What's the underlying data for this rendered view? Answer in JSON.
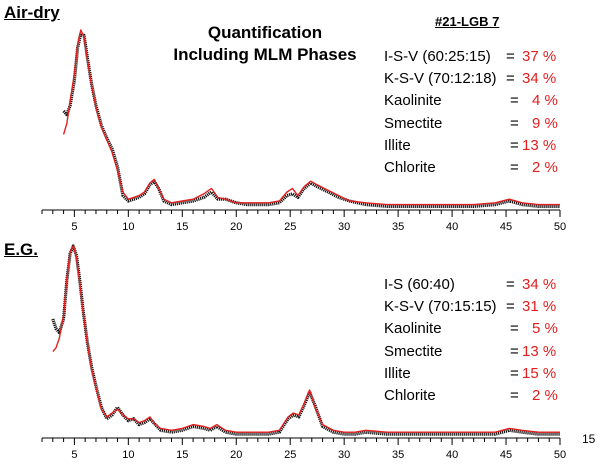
{
  "title": "Quantification Including MLM Phases",
  "title_lines": [
    "Quantification",
    "Including MLM Phases"
  ],
  "sample_id": "#21-LGB 7",
  "extra_label": "15",
  "colors": {
    "measured": "#111111",
    "calculated": "#e02020",
    "value": "#e02020"
  },
  "chart_data": [
    {
      "type": "line",
      "panel_label": "Air-dry",
      "xlim": [
        2,
        50
      ],
      "x_ticks": [
        5,
        10,
        15,
        20,
        25,
        30,
        35,
        40,
        45,
        50
      ],
      "grid": false,
      "series": [
        {
          "style": "measured-dotted",
          "x": [
            4,
            4.3,
            4.6,
            5,
            5.3,
            5.6,
            5.9,
            6.2,
            6.6,
            7,
            7.5,
            8,
            8.5,
            9,
            9.5,
            10,
            10.5,
            11,
            11.5,
            12,
            12.4,
            12.8,
            13.3,
            14,
            15,
            16,
            17,
            17.7,
            18.3,
            19,
            20,
            21,
            22,
            23,
            24,
            24.7,
            25.2,
            25.7,
            26.3,
            26.9,
            27.5,
            28.5,
            29.5,
            30.5,
            32,
            34,
            36,
            38,
            40,
            42,
            44,
            45.3,
            46.5,
            48,
            50
          ],
          "y": [
            0.55,
            0.53,
            0.58,
            0.72,
            0.9,
            0.98,
            0.97,
            0.85,
            0.7,
            0.58,
            0.47,
            0.4,
            0.34,
            0.24,
            0.08,
            0.05,
            0.06,
            0.07,
            0.09,
            0.14,
            0.16,
            0.12,
            0.05,
            0.03,
            0.04,
            0.05,
            0.07,
            0.1,
            0.06,
            0.06,
            0.04,
            0.03,
            0.03,
            0.03,
            0.04,
            0.08,
            0.09,
            0.07,
            0.12,
            0.15,
            0.13,
            0.1,
            0.07,
            0.05,
            0.03,
            0.02,
            0.02,
            0.02,
            0.02,
            0.02,
            0.03,
            0.05,
            0.03,
            0.02,
            0.02
          ]
        },
        {
          "style": "calculated",
          "x": [
            4,
            4.3,
            4.6,
            5,
            5.3,
            5.6,
            5.9,
            6.2,
            6.6,
            7,
            7.5,
            8,
            8.5,
            9,
            9.5,
            10,
            10.5,
            11,
            11.5,
            12,
            12.4,
            12.8,
            13.3,
            14,
            15,
            16,
            17,
            17.7,
            18.3,
            19,
            20,
            21,
            22,
            23,
            24,
            24.7,
            25.2,
            25.7,
            26.3,
            26.9,
            27.5,
            28.5,
            29.5,
            30.5,
            32,
            34,
            36,
            38,
            40,
            42,
            44,
            45.3,
            46.5,
            48,
            50
          ],
          "y": [
            0.42,
            0.48,
            0.6,
            0.76,
            0.92,
            1.0,
            0.96,
            0.84,
            0.69,
            0.57,
            0.46,
            0.39,
            0.32,
            0.22,
            0.1,
            0.06,
            0.07,
            0.08,
            0.1,
            0.15,
            0.17,
            0.12,
            0.06,
            0.04,
            0.05,
            0.06,
            0.09,
            0.12,
            0.07,
            0.06,
            0.04,
            0.04,
            0.04,
            0.04,
            0.05,
            0.1,
            0.12,
            0.08,
            0.13,
            0.16,
            0.14,
            0.11,
            0.08,
            0.05,
            0.04,
            0.03,
            0.03,
            0.03,
            0.03,
            0.03,
            0.04,
            0.06,
            0.04,
            0.03,
            0.03
          ]
        }
      ],
      "phases": [
        {
          "name": "I-S-V",
          "ratio": "(60:25:15)",
          "value": "37 %"
        },
        {
          "name": "K-S-V",
          "ratio": "(70:12:18)",
          "value": "34 %"
        },
        {
          "name": "Kaolinite",
          "ratio": "",
          "value": "4 %"
        },
        {
          "name": "Smectite",
          "ratio": "",
          "value": "9 %"
        },
        {
          "name": "Illite",
          "ratio": "",
          "value": "13 %"
        },
        {
          "name": "Chlorite",
          "ratio": "",
          "value": "2 %"
        }
      ]
    },
    {
      "type": "line",
      "panel_label": "E.G.",
      "xlim": [
        2,
        50
      ],
      "x_ticks": [
        5,
        10,
        15,
        20,
        25,
        30,
        35,
        40,
        45,
        50
      ],
      "grid": false,
      "series": [
        {
          "style": "measured-dotted",
          "x": [
            3,
            3.3,
            3.6,
            4,
            4.3,
            4.6,
            4.9,
            5.2,
            5.5,
            5.8,
            6.2,
            6.6,
            7,
            7.5,
            8,
            8.5,
            9,
            9.5,
            10,
            10.5,
            11,
            11.5,
            12,
            12.5,
            13,
            14,
            15,
            16,
            17,
            17.6,
            18.2,
            19,
            20,
            21,
            22,
            23,
            24,
            24.8,
            25.3,
            25.8,
            26.3,
            26.8,
            27.3,
            28,
            29,
            30,
            31,
            32,
            34,
            36,
            38,
            40,
            42,
            44,
            45.3,
            46.5,
            48,
            50
          ],
          "y": [
            0.62,
            0.57,
            0.55,
            0.62,
            0.82,
            0.96,
            1.0,
            0.95,
            0.82,
            0.67,
            0.5,
            0.37,
            0.27,
            0.16,
            0.1,
            0.12,
            0.16,
            0.12,
            0.09,
            0.1,
            0.07,
            0.08,
            0.1,
            0.07,
            0.04,
            0.03,
            0.04,
            0.06,
            0.05,
            0.04,
            0.06,
            0.03,
            0.02,
            0.02,
            0.02,
            0.02,
            0.03,
            0.1,
            0.12,
            0.11,
            0.17,
            0.24,
            0.17,
            0.06,
            0.03,
            0.02,
            0.02,
            0.03,
            0.02,
            0.02,
            0.02,
            0.02,
            0.02,
            0.02,
            0.04,
            0.03,
            0.02,
            0.02
          ]
        },
        {
          "style": "calculated",
          "x": [
            3,
            3.3,
            3.6,
            4,
            4.3,
            4.6,
            4.9,
            5.2,
            5.5,
            5.8,
            6.2,
            6.6,
            7,
            7.5,
            8,
            8.5,
            9,
            9.5,
            10,
            10.5,
            11,
            11.5,
            12,
            12.5,
            13,
            14,
            15,
            16,
            17,
            17.6,
            18.2,
            19,
            20,
            21,
            22,
            23,
            24,
            24.8,
            25.3,
            25.8,
            26.3,
            26.8,
            27.3,
            28,
            29,
            30,
            31,
            32,
            34,
            36,
            38,
            40,
            42,
            44,
            45.3,
            46.5,
            48,
            50
          ],
          "y": [
            0.45,
            0.47,
            0.52,
            0.64,
            0.83,
            0.97,
            1.0,
            0.94,
            0.81,
            0.66,
            0.49,
            0.36,
            0.26,
            0.15,
            0.11,
            0.13,
            0.15,
            0.12,
            0.1,
            0.1,
            0.08,
            0.09,
            0.11,
            0.07,
            0.05,
            0.04,
            0.05,
            0.07,
            0.06,
            0.05,
            0.07,
            0.04,
            0.03,
            0.03,
            0.03,
            0.03,
            0.04,
            0.11,
            0.13,
            0.12,
            0.18,
            0.25,
            0.16,
            0.07,
            0.04,
            0.03,
            0.03,
            0.04,
            0.03,
            0.03,
            0.03,
            0.03,
            0.03,
            0.03,
            0.05,
            0.04,
            0.03,
            0.03
          ]
        }
      ],
      "phases": [
        {
          "name": "I-S",
          "ratio": "(60:40)",
          "value": "34 %"
        },
        {
          "name": "K-S-V",
          "ratio": "(70:15:15)",
          "value": "31 %"
        },
        {
          "name": "Kaolinite",
          "ratio": "",
          "value": "5 %"
        },
        {
          "name": "Smectite",
          "ratio": "",
          "value": "13 %"
        },
        {
          "name": "Illite",
          "ratio": "",
          "value": "15 %"
        },
        {
          "name": "Chlorite",
          "ratio": "",
          "value": "2 %"
        }
      ]
    }
  ]
}
